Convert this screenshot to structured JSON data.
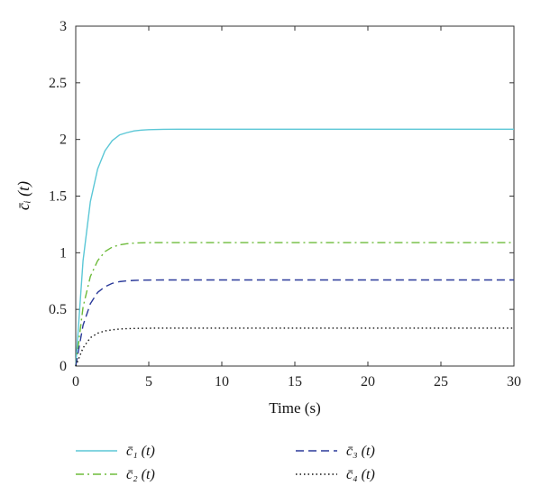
{
  "chart_data": {
    "type": "line",
    "xlabel": "Time (s)",
    "ylabel": "c̄ᵢ (t)",
    "xlim": [
      0,
      30
    ],
    "ylim": [
      0,
      3
    ],
    "xticks": [
      0,
      5,
      10,
      15,
      20,
      25,
      30
    ],
    "yticks": [
      0,
      0.5,
      1,
      1.5,
      2,
      2.5,
      3
    ],
    "xtick_labels": [
      "0",
      "5",
      "10",
      "15",
      "20",
      "25",
      "30"
    ],
    "ytick_labels": [
      "0",
      "0.5",
      "1",
      "1.5",
      "2",
      "2.5",
      "3"
    ],
    "grid": false,
    "legend_position": "bottom",
    "x": [
      0,
      0.5,
      1,
      1.5,
      2,
      2.5,
      3,
      3.5,
      4,
      4.5,
      5,
      6,
      7,
      8,
      10,
      15,
      20,
      25,
      30
    ],
    "series": [
      {
        "name": "c̄₁ (t)",
        "color": "#5bc7d6",
        "dash": "solid",
        "values": [
          0,
          0.93,
          1.45,
          1.74,
          1.9,
          1.99,
          2.04,
          2.06,
          2.075,
          2.082,
          2.086,
          2.089,
          2.09,
          2.09,
          2.09,
          2.09,
          2.09,
          2.09,
          2.09
        ]
      },
      {
        "name": "c̄₂ (t)",
        "color": "#6dbb3a",
        "dash": "dashdot",
        "values": [
          0,
          0.52,
          0.79,
          0.93,
          1.01,
          1.05,
          1.07,
          1.08,
          1.085,
          1.088,
          1.089,
          1.09,
          1.09,
          1.09,
          1.09,
          1.09,
          1.09,
          1.09,
          1.09
        ]
      },
      {
        "name": "c̄₃ (t)",
        "color": "#2b3a9a",
        "dash": "dashed",
        "values": [
          0,
          0.36,
          0.55,
          0.65,
          0.7,
          0.73,
          0.745,
          0.752,
          0.756,
          0.758,
          0.759,
          0.76,
          0.76,
          0.76,
          0.76,
          0.76,
          0.76,
          0.76,
          0.76
        ]
      },
      {
        "name": "c̄₄ (t)",
        "color": "#111111",
        "dash": "dotted",
        "values": [
          0,
          0.16,
          0.25,
          0.29,
          0.31,
          0.32,
          0.327,
          0.33,
          0.332,
          0.333,
          0.334,
          0.335,
          0.335,
          0.335,
          0.335,
          0.335,
          0.335,
          0.335,
          0.335
        ]
      }
    ]
  }
}
